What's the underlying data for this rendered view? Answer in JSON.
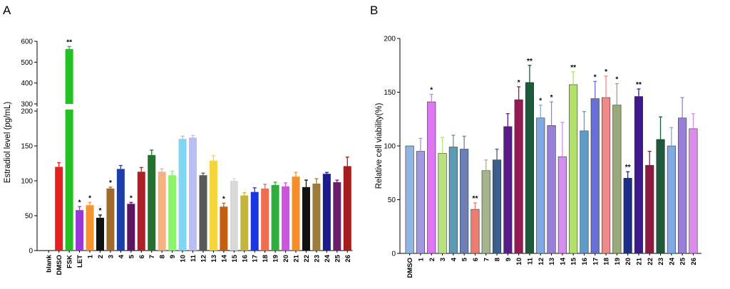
{
  "chart_data": [
    {
      "type": "bar",
      "panel_label": "A",
      "title": "",
      "xlabel": "",
      "ylabel": "Estradiol level (pg/mL)",
      "broken_axis": true,
      "lower_ylim": [
        0,
        200
      ],
      "upper_ylim": [
        300,
        600
      ],
      "lower_ticks": [
        "0",
        "50",
        "100",
        "150",
        "200"
      ],
      "upper_ticks": [
        "300",
        "400",
        "500",
        "600"
      ],
      "categories": [
        "blank",
        "DMSO",
        "FSK",
        "LET",
        "1",
        "2",
        "3",
        "4",
        "5",
        "6",
        "7",
        "8",
        "9",
        "10",
        "11",
        "12",
        "13",
        "14",
        "15",
        "16",
        "17",
        "18",
        "19",
        "20",
        "21",
        "22",
        "23",
        "24",
        "25",
        "26"
      ],
      "values": [
        0,
        120,
        563,
        58,
        65,
        47,
        89,
        117,
        67,
        113,
        137,
        113,
        108,
        160,
        162,
        108,
        129,
        63,
        100,
        79,
        84,
        89,
        94,
        92,
        106,
        91,
        96,
        110,
        98,
        121
      ],
      "errors": [
        0,
        6,
        12,
        5,
        4,
        4,
        2,
        5,
        2,
        6,
        7,
        4,
        6,
        4,
        3,
        3,
        7,
        5,
        3,
        4,
        6,
        6,
        4,
        5,
        6,
        10,
        7,
        2,
        3,
        13
      ],
      "significance": [
        "",
        "",
        "**",
        "*",
        "*",
        "*",
        "*",
        "",
        "*",
        "",
        "",
        "",
        "",
        "",
        "",
        "",
        "",
        "*",
        "",
        "",
        "",
        "",
        "",
        "",
        "",
        "",
        "",
        "",
        "",
        ""
      ],
      "colors": [
        "#ffffff",
        "#e5201e",
        "#22c022",
        "#9b37d6",
        "#f7932e",
        "#111111",
        "#a06a2c",
        "#1c3ea8",
        "#5c1560",
        "#b01f26",
        "#24702e",
        "#f4b184",
        "#8ff26b",
        "#7fd6f2",
        "#b9bff5",
        "#595959",
        "#f5d53c",
        "#c45f12",
        "#d9d9d9",
        "#c5b63a",
        "#1d35e0",
        "#f26a4f",
        "#2fae3e",
        "#cc55dd",
        "#f58d2b",
        "#111111",
        "#9c7b3c",
        "#1c1c8c",
        "#6a1f6a",
        "#a31d1d"
      ]
    },
    {
      "type": "bar",
      "panel_label": "B",
      "title": "",
      "xlabel": "",
      "ylabel": "Relative cell viability(%)",
      "ylim": [
        0,
        200
      ],
      "yticks": [
        "0",
        "50",
        "100",
        "150",
        "200"
      ],
      "categories": [
        "DMSO",
        "1",
        "2",
        "3",
        "4",
        "5",
        "6",
        "7",
        "8",
        "9",
        "10",
        "11",
        "12",
        "13",
        "14",
        "15",
        "16",
        "17",
        "18",
        "19",
        "20",
        "21",
        "22",
        "23",
        "24",
        "25",
        "26"
      ],
      "values": [
        100,
        95,
        141,
        93,
        99,
        97,
        41,
        77,
        87,
        118,
        143,
        159,
        126,
        119,
        90,
        157,
        114,
        144,
        145,
        138,
        70,
        146,
        82,
        106,
        100,
        126,
        116
      ],
      "errors": [
        0,
        12,
        7,
        15,
        11,
        12,
        6,
        10,
        10,
        12,
        12,
        16,
        12,
        22,
        32,
        12,
        18,
        16,
        20,
        20,
        6,
        7,
        13,
        21,
        17,
        19,
        14
      ],
      "significance": [
        "",
        "",
        "*",
        "",
        "",
        "",
        "**",
        "",
        "",
        "",
        "*",
        "**",
        "*",
        "*",
        "",
        "**",
        "",
        "*",
        "*",
        "*",
        "**",
        "**",
        "",
        "",
        "",
        "",
        ""
      ],
      "colors": [
        "#8fb6e2",
        "#a498e2",
        "#dd77f2",
        "#b8e27a",
        "#5b9ab2",
        "#6b7fb8",
        "#f07a6e",
        "#a4b48c",
        "#3a5f8c",
        "#5a1a8c",
        "#941a54",
        "#1c5a3a",
        "#7ea9e2",
        "#9880d6",
        "#d38ef0",
        "#b3e06a",
        "#5f9bc4",
        "#6870d6",
        "#f08a8a",
        "#98aa7a",
        "#1c2e8c",
        "#3d1a8c",
        "#8c1a3e",
        "#1c5a3a",
        "#7ea9e2",
        "#9880d6",
        "#e089ec"
      ]
    }
  ]
}
